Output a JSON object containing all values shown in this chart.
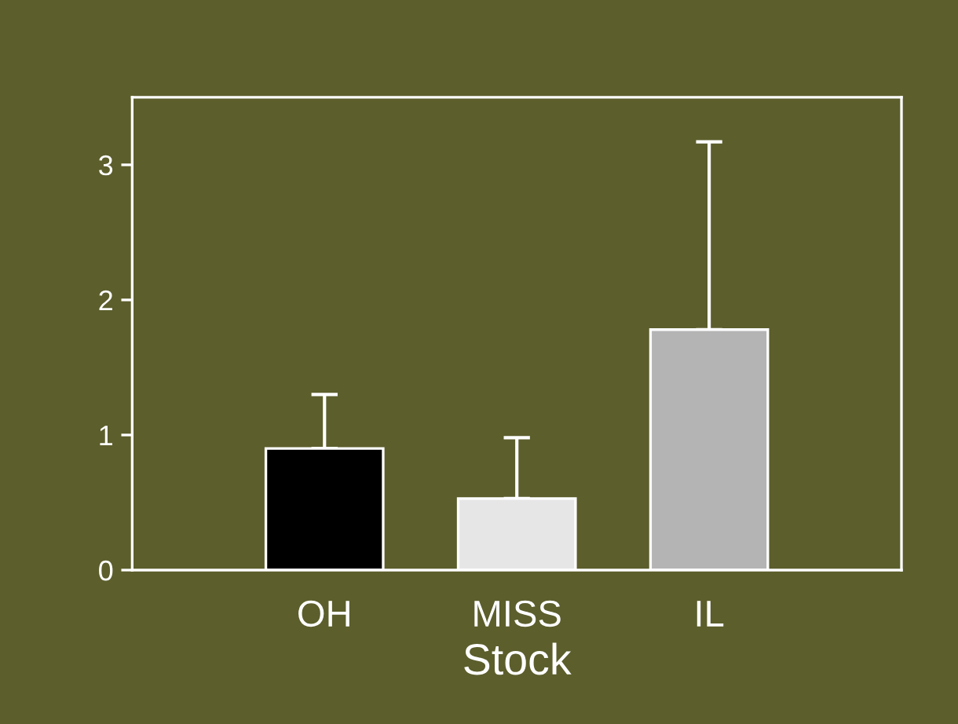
{
  "chart_data": {
    "type": "bar",
    "xlabel": "Stock",
    "categories": [
      "OH",
      "MISS",
      "IL"
    ],
    "values": [
      0.9,
      0.53,
      1.78
    ],
    "colors": [
      "#000000",
      "#e6e6e6",
      "#b4b4b4"
    ],
    "errors": [
      [
        0.9,
        1.3
      ],
      [
        0.53,
        0.98
      ],
      [
        1.78,
        3.17
      ]
    ],
    "ylim": [
      0,
      3.5
    ],
    "yticks": [
      0,
      1,
      2,
      3
    ],
    "grid": false,
    "legend": false
  }
}
